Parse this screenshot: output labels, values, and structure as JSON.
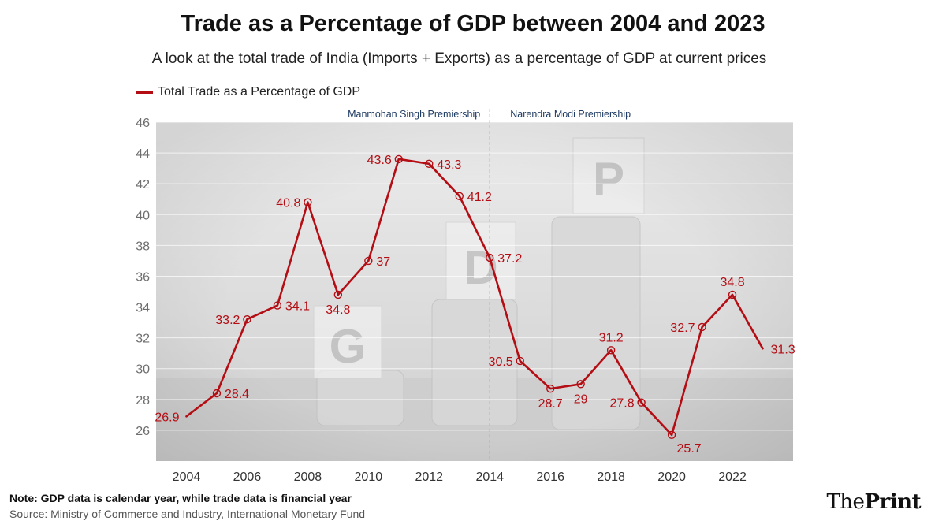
{
  "colors": {
    "line": "#b40d14",
    "band_text": "#1f3b63",
    "grid": "#ffffff"
  },
  "brand": {
    "part1": "The",
    "part2": "Print"
  },
  "footer": {
    "note": "Note: GDP data is calendar year, while trade data is financial year",
    "source": "Source: Ministry of Commerce and Industry, International Monetary Fund"
  },
  "chart_data": {
    "type": "line",
    "title": "Trade as a Percentage of GDP between 2004 and 2023",
    "subtitle": "A look at the total trade of India (Imports + Exports) as a percentage of GDP at current prices",
    "xlabel": "",
    "ylabel": "",
    "ylim": [
      24,
      46
    ],
    "xlim": [
      2003,
      2024
    ],
    "y_ticks": [
      26,
      28,
      30,
      32,
      34,
      36,
      38,
      40,
      42,
      44,
      46
    ],
    "x_ticks": [
      2004,
      2006,
      2008,
      2010,
      2012,
      2014,
      2016,
      2018,
      2020,
      2022
    ],
    "legend_position": "top-left",
    "grid": true,
    "series": [
      {
        "name": "Total Trade as a Percentage of GDP",
        "x": [
          2004,
          2005,
          2006,
          2007,
          2008,
          2009,
          2010,
          2011,
          2012,
          2013,
          2014,
          2015,
          2016,
          2017,
          2018,
          2019,
          2020,
          2021,
          2022,
          2023
        ],
        "values": [
          26.9,
          28.4,
          33.2,
          34.1,
          40.8,
          34.8,
          37,
          43.6,
          43.3,
          41.2,
          37.2,
          30.5,
          28.7,
          29,
          31.2,
          27.8,
          25.7,
          32.7,
          34.8,
          31.3
        ],
        "labels": [
          "26.9",
          "28.4",
          "33.2",
          "34.1",
          "40.8",
          "34.8",
          "37",
          "43.6",
          "43.3",
          "41.2",
          "37.2",
          "30.5",
          "28.7",
          "29",
          "31.2",
          "27.8",
          "25.7",
          "32.7",
          "34.8",
          "31.3"
        ]
      }
    ],
    "annotations": {
      "divider_year": 2014,
      "left_band": "Manmohan Singh Premiership",
      "right_band": "Narendra Modi Premiership"
    }
  }
}
